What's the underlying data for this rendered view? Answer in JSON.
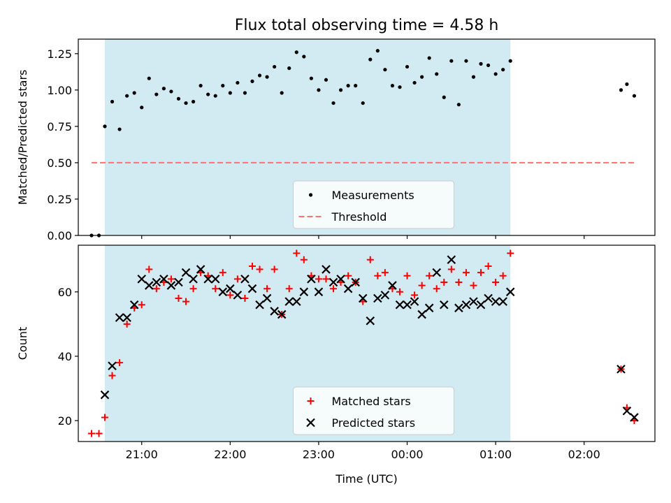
{
  "chart_data": [
    {
      "type": "scatter",
      "title": "Flux total observing time = 4.58 h",
      "xlabel": "",
      "ylabel": "Matched/Predicted stars",
      "ylim": [
        0,
        1.35
      ],
      "yticks": [
        "0.00",
        "0.25",
        "0.50",
        "0.75",
        "1.00",
        "1.25"
      ],
      "xlim": [
        "20:17",
        "02:48"
      ],
      "xticks": [
        "21:00",
        "22:00",
        "23:00",
        "00:00",
        "01:00",
        "02:00"
      ],
      "shaded_span": {
        "start": "20:35",
        "end": "01:10",
        "color": "#add8e6"
      },
      "threshold": {
        "name": "Threshold",
        "value": 0.5,
        "x_start": "20:26",
        "x_end": "02:35",
        "color": "#ff6f6f",
        "style": "dashed"
      },
      "legend": {
        "placement": "lower center",
        "entries": [
          "Measurements",
          "Threshold"
        ]
      },
      "series": [
        {
          "name": "Measurements",
          "color": "#000000",
          "marker": "dot",
          "x": [
            "20:26",
            "20:31",
            "20:35",
            "20:40",
            "20:45",
            "20:50",
            "20:55",
            "21:00",
            "21:05",
            "21:10",
            "21:15",
            "21:20",
            "21:25",
            "21:30",
            "21:35",
            "21:40",
            "21:45",
            "21:50",
            "21:55",
            "22:00",
            "22:05",
            "22:10",
            "22:15",
            "22:20",
            "22:25",
            "22:30",
            "22:35",
            "22:40",
            "22:45",
            "22:50",
            "22:55",
            "23:00",
            "23:05",
            "23:10",
            "23:15",
            "23:20",
            "23:25",
            "23:30",
            "23:35",
            "23:40",
            "23:45",
            "23:50",
            "23:55",
            "00:00",
            "00:05",
            "00:10",
            "00:15",
            "00:20",
            "00:25",
            "00:30",
            "00:35",
            "00:40",
            "00:45",
            "00:50",
            "00:55",
            "01:00",
            "01:05",
            "01:10",
            "02:25",
            "02:29",
            "02:34"
          ],
          "y": [
            0.0,
            0.0,
            0.75,
            0.92,
            0.73,
            0.96,
            0.98,
            0.88,
            1.08,
            0.97,
            1.01,
            0.99,
            0.94,
            0.91,
            0.92,
            1.03,
            0.97,
            0.96,
            1.03,
            0.98,
            1.05,
            0.98,
            1.06,
            1.1,
            1.09,
            1.16,
            0.98,
            1.15,
            1.26,
            1.23,
            1.08,
            1.0,
            1.07,
            0.91,
            1.0,
            1.03,
            1.03,
            0.91,
            1.21,
            1.27,
            1.14,
            1.03,
            1.02,
            1.16,
            1.05,
            1.09,
            1.22,
            1.11,
            0.95,
            1.2,
            0.9,
            1.2,
            1.09,
            1.18,
            1.17,
            1.11,
            1.14,
            1.2,
            1.0,
            1.04,
            0.96
          ]
        }
      ]
    },
    {
      "type": "scatter",
      "title": "",
      "xlabel": "Time (UTC)",
      "ylabel": "Count",
      "ylim": [
        13.5,
        74.5
      ],
      "yticks": [
        "20",
        "40",
        "60"
      ],
      "xlim": [
        "20:17",
        "02:48"
      ],
      "xticks": [
        "21:00",
        "22:00",
        "23:00",
        "00:00",
        "01:00",
        "02:00"
      ],
      "shaded_span": {
        "start": "20:35",
        "end": "01:10",
        "color": "#add8e6"
      },
      "legend": {
        "placement": "lower center",
        "entries": [
          "Matched stars",
          "Predicted stars"
        ]
      },
      "series": [
        {
          "name": "Matched stars",
          "color": "#ff0000",
          "marker": "plus",
          "x": [
            "20:26",
            "20:31",
            "20:35",
            "20:40",
            "20:45",
            "20:50",
            "20:55",
            "21:00",
            "21:05",
            "21:10",
            "21:15",
            "21:20",
            "21:25",
            "21:30",
            "21:35",
            "21:40",
            "21:45",
            "21:50",
            "21:55",
            "22:00",
            "22:05",
            "22:10",
            "22:15",
            "22:20",
            "22:25",
            "22:30",
            "22:35",
            "22:40",
            "22:45",
            "22:50",
            "22:55",
            "23:00",
            "23:05",
            "23:10",
            "23:15",
            "23:20",
            "23:25",
            "23:30",
            "23:35",
            "23:40",
            "23:45",
            "23:50",
            "23:55",
            "00:00",
            "00:05",
            "00:10",
            "00:15",
            "00:20",
            "00:25",
            "00:30",
            "00:35",
            "00:40",
            "00:45",
            "00:50",
            "00:55",
            "01:00",
            "01:05",
            "01:10",
            "02:25",
            "02:29",
            "02:34"
          ],
          "y": [
            16,
            16,
            21,
            34,
            38,
            50,
            55,
            56,
            67,
            61,
            63,
            64,
            58,
            57,
            61,
            66,
            65,
            61,
            66,
            59,
            64,
            58,
            68,
            67,
            61,
            67,
            53,
            61,
            72,
            70,
            65,
            64,
            64,
            61,
            63,
            65,
            63,
            57,
            70,
            65,
            66,
            61,
            60,
            65,
            59,
            62,
            65,
            61,
            63,
            67,
            63,
            66,
            62,
            66,
            68,
            63,
            65,
            72,
            36,
            24,
            20
          ]
        },
        {
          "name": "Predicted stars",
          "color": "#000000",
          "marker": "x",
          "x": [
            "20:35",
            "20:40",
            "20:45",
            "20:50",
            "20:55",
            "21:00",
            "21:05",
            "21:10",
            "21:15",
            "21:20",
            "21:25",
            "21:30",
            "21:35",
            "21:40",
            "21:45",
            "21:50",
            "21:55",
            "22:00",
            "22:05",
            "22:10",
            "22:15",
            "22:20",
            "22:25",
            "22:30",
            "22:35",
            "22:40",
            "22:45",
            "22:50",
            "22:55",
            "23:00",
            "23:05",
            "23:10",
            "23:15",
            "23:20",
            "23:25",
            "23:30",
            "23:35",
            "23:40",
            "23:45",
            "23:50",
            "23:55",
            "00:00",
            "00:05",
            "00:10",
            "00:15",
            "00:20",
            "00:25",
            "00:30",
            "00:35",
            "00:40",
            "00:45",
            "00:50",
            "00:55",
            "01:00",
            "01:05",
            "01:10",
            "02:25",
            "02:29",
            "02:34"
          ],
          "y": [
            28,
            37,
            52,
            52,
            56,
            64,
            62,
            63,
            64,
            62,
            63,
            66,
            64,
            67,
            64,
            64,
            60,
            61,
            59,
            64,
            61,
            56,
            58,
            54,
            53,
            57,
            57,
            60,
            64,
            60,
            67,
            63,
            64,
            61,
            63,
            58,
            51,
            58,
            59,
            62,
            56,
            56,
            57,
            53,
            55,
            66,
            56,
            70,
            55,
            56,
            57,
            56,
            58,
            57,
            57,
            60,
            36,
            23,
            21
          ]
        }
      ]
    }
  ]
}
